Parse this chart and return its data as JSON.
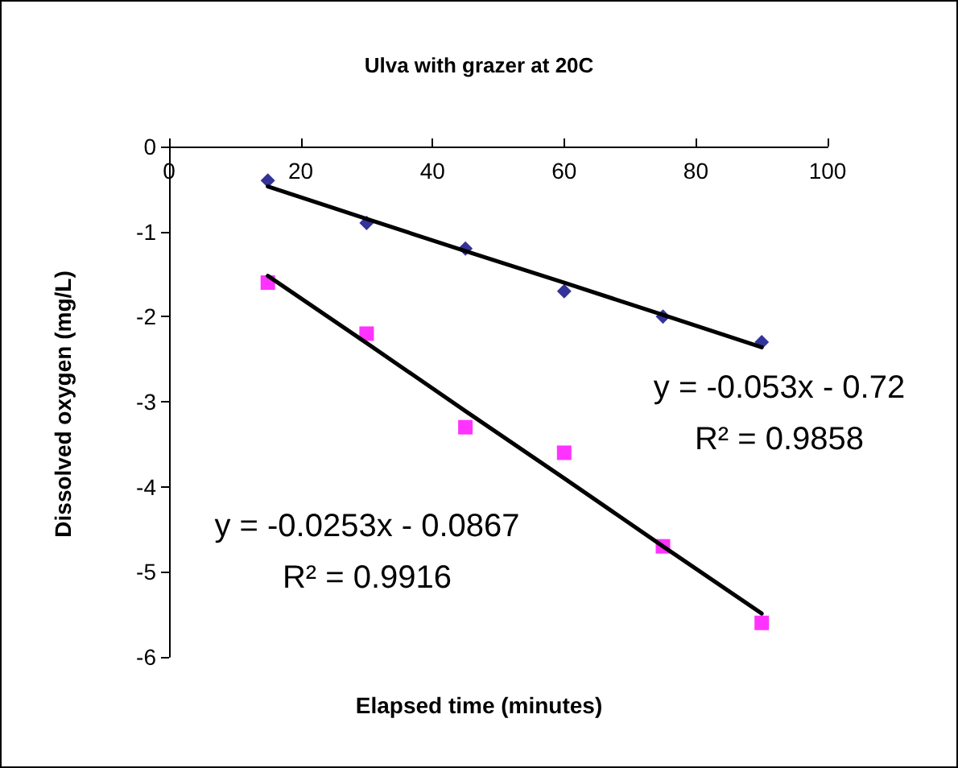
{
  "chart_data": {
    "type": "scatter",
    "title": "Ulva with grazer at 20C",
    "xlabel": "Elapsed time (minutes)",
    "ylabel": "Dissolved oxygen (mg/L)",
    "x": [
      15,
      30,
      45,
      60,
      75,
      90
    ],
    "series": [
      {
        "color": "#000080",
        "marker": "diamond",
        "values": [
          -0.4,
          -0.9,
          -1.2,
          -1.7,
          -2.0,
          -2.3
        ]
      },
      {
        "color": "#ff00ff",
        "marker": "square",
        "values": [
          -1.6,
          -2.2,
          -3.3,
          -3.6,
          -4.7,
          -5.6
        ]
      },
      {
        "type": "line",
        "color": "#000000",
        "marker": "none",
        "values": [
          -0.47,
          -0.85,
          -1.23,
          -1.6,
          -1.98,
          -2.36
        ]
      },
      {
        "type": "line",
        "color": "#000000",
        "marker": "none",
        "values": [
          -1.52,
          -2.31,
          -3.11,
          -3.9,
          -4.7,
          -5.49
        ]
      }
    ],
    "xlim": [
      0,
      100
    ],
    "xticks": [
      0,
      20,
      40,
      60,
      80,
      100
    ],
    "ylim": [
      -6,
      0
    ],
    "yticks": [
      -6,
      -5,
      -4,
      -3,
      -2,
      -1,
      0
    ],
    "grid": false,
    "annotations": [
      "y = -0.053x - 0.72",
      "R² = 0.9858",
      "y = -0.0253x - 0.0867",
      "R² = 0.9916"
    ]
  }
}
